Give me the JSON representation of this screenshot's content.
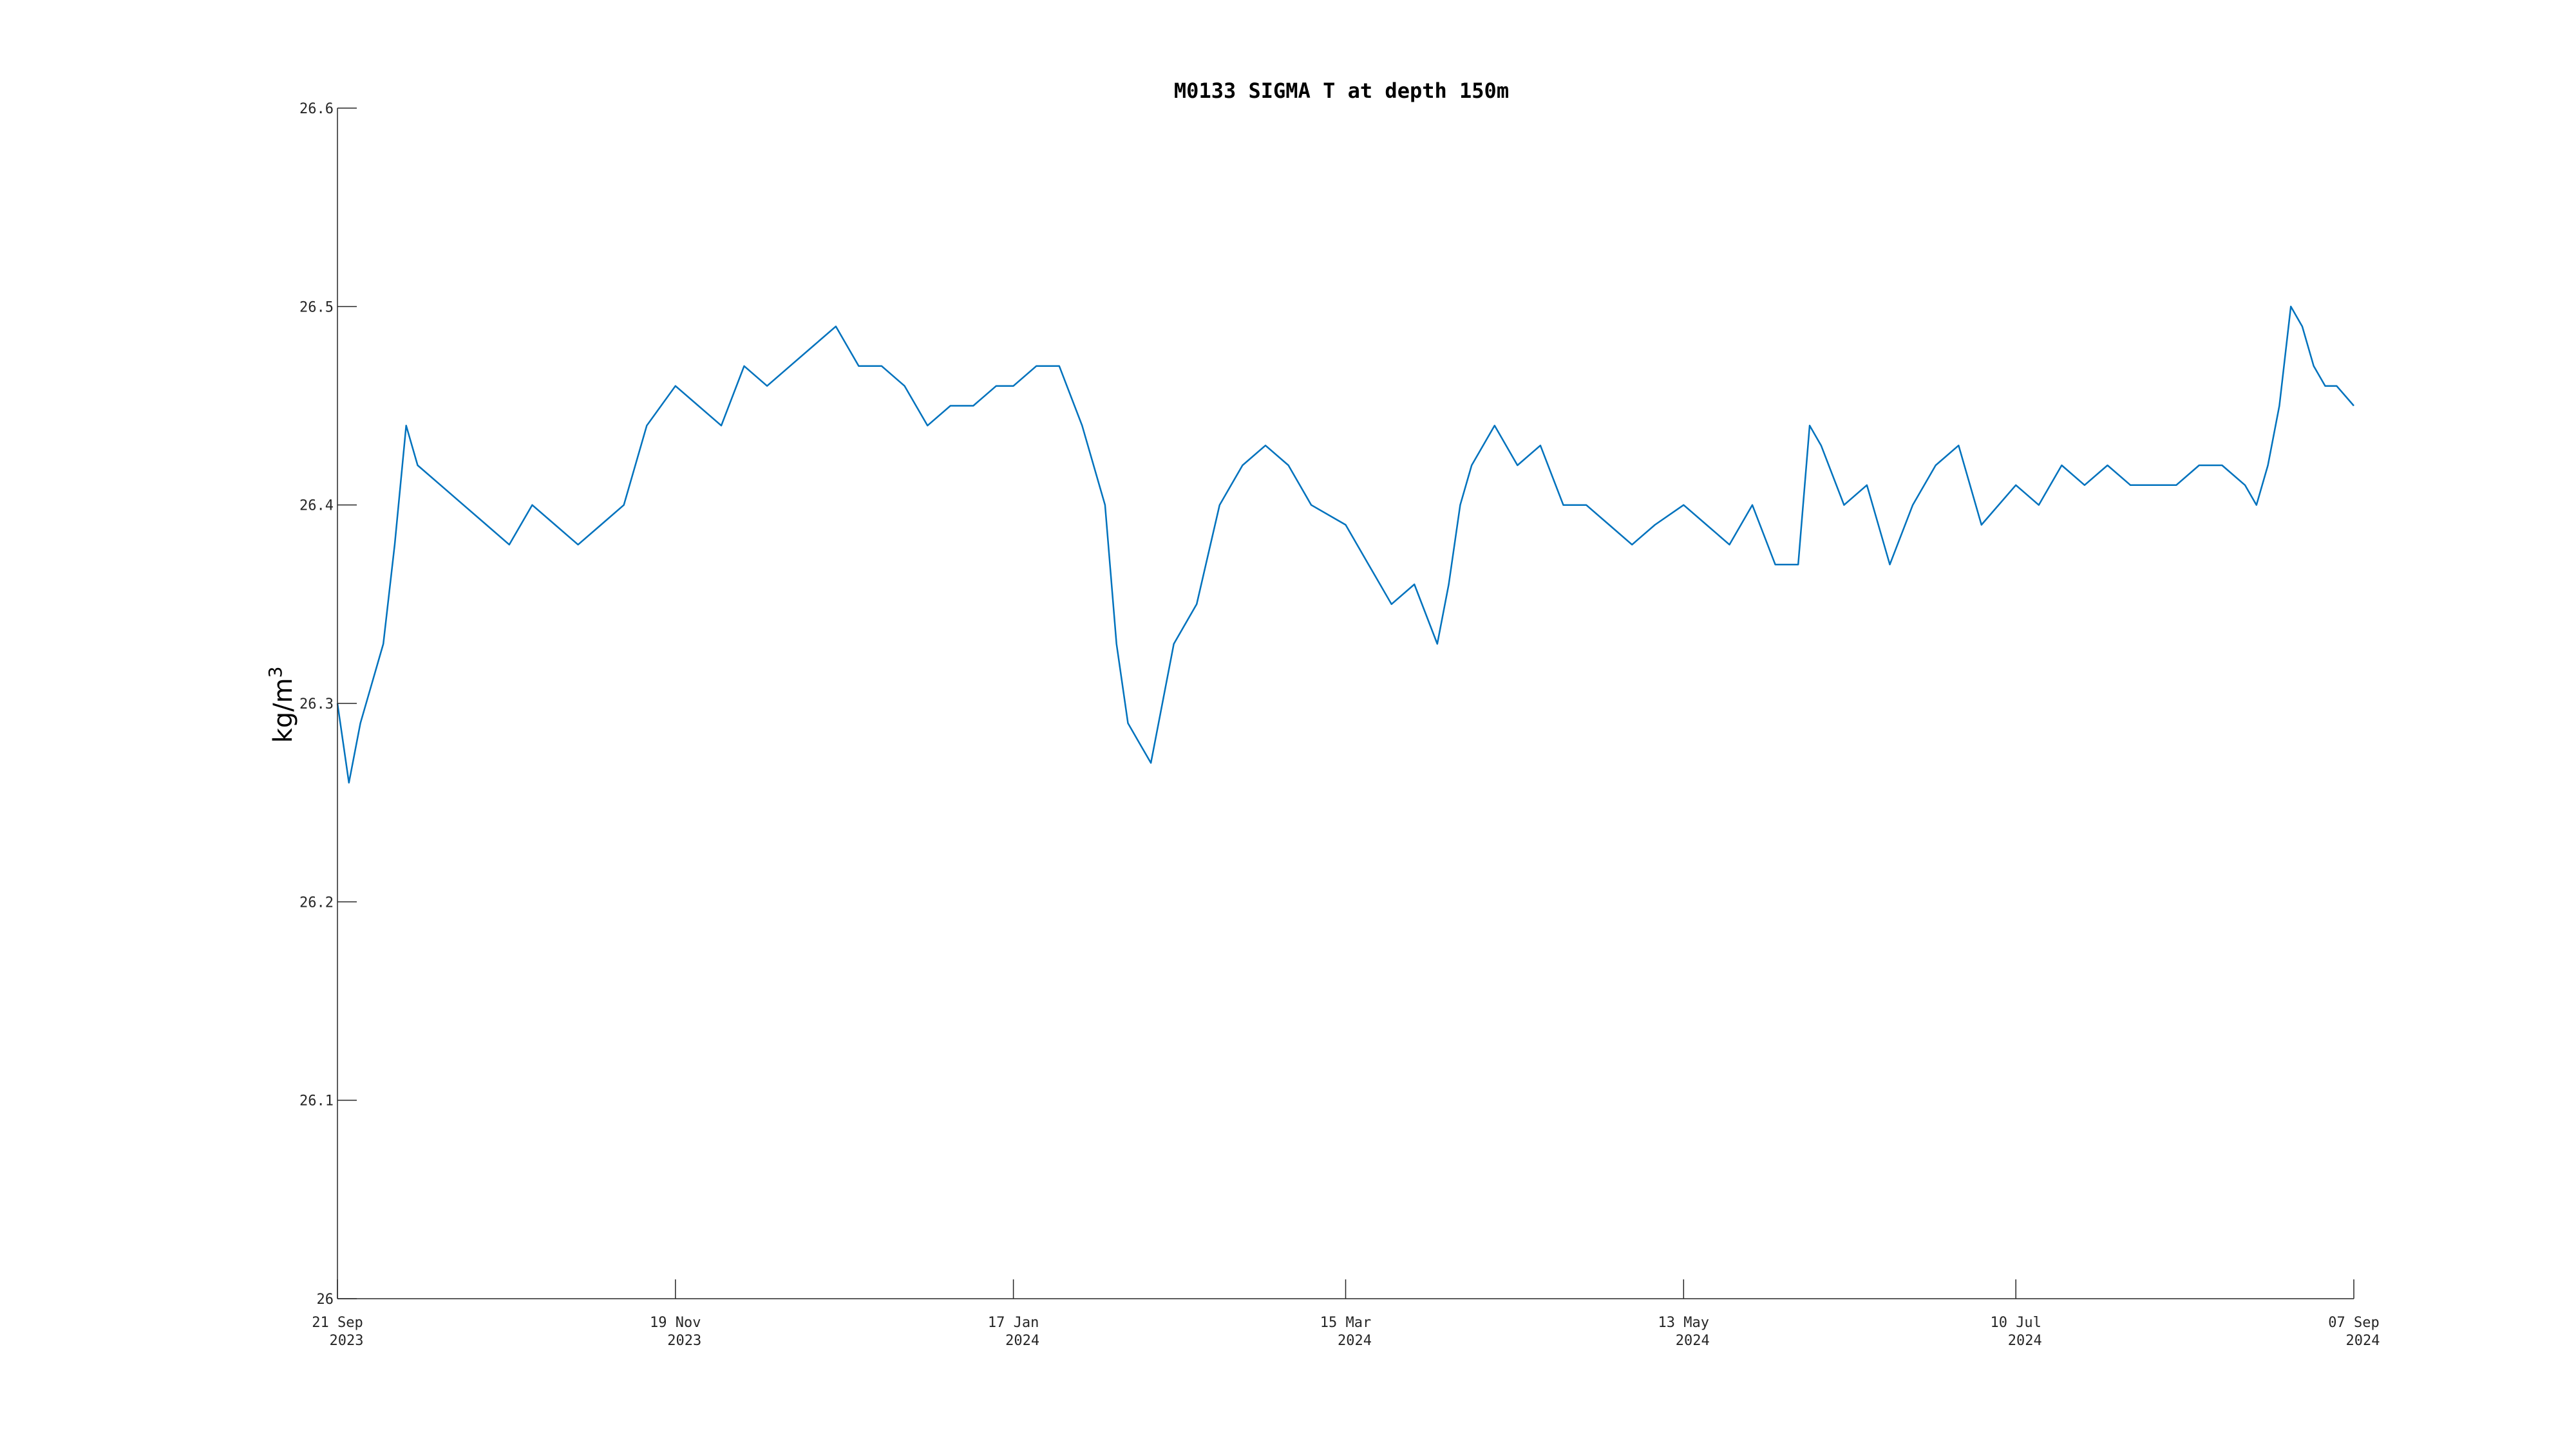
{
  "chart_data": {
    "type": "line",
    "title": "M0133 SIGMA T at depth 150m",
    "xlabel": "",
    "ylabel": "kg/m",
    "ylabel_superscript": "3",
    "xlim": [
      "2023-09-21",
      "2024-09-07"
    ],
    "ylim": [
      26.0,
      26.6
    ],
    "grid": false,
    "legend": "none",
    "line_color": "#0072BD",
    "y_ticks": [
      {
        "value": 26.0,
        "label": "26"
      },
      {
        "value": 26.1,
        "label": "26.1"
      },
      {
        "value": 26.2,
        "label": "26.2"
      },
      {
        "value": 26.3,
        "label": "26.3"
      },
      {
        "value": 26.4,
        "label": "26.4"
      },
      {
        "value": 26.5,
        "label": "26.5"
      },
      {
        "value": 26.6,
        "label": "26.6"
      }
    ],
    "x_ticks": [
      {
        "date": "2023-09-21",
        "label1": "21 Sep",
        "label2": "2023"
      },
      {
        "date": "2023-11-19",
        "label1": "19 Nov",
        "label2": "2023"
      },
      {
        "date": "2024-01-17",
        "label1": "17 Jan",
        "label2": "2024"
      },
      {
        "date": "2024-03-15",
        "label1": "15 Mar",
        "label2": "2024"
      },
      {
        "date": "2024-05-13",
        "label1": "13 May",
        "label2": "2024"
      },
      {
        "date": "2024-07-10",
        "label1": "10 Jul",
        "label2": "2024"
      },
      {
        "date": "2024-09-07",
        "label1": "07 Sep",
        "label2": "2024"
      }
    ],
    "series": [
      {
        "x": [
          "2023-09-21",
          "2023-09-23",
          "2023-09-25",
          "2023-09-27",
          "2023-09-29",
          "2023-10-01",
          "2023-10-03",
          "2023-10-05",
          "2023-10-09",
          "2023-10-13",
          "2023-10-17",
          "2023-10-21",
          "2023-10-25",
          "2023-10-29",
          "2023-11-02",
          "2023-11-06",
          "2023-11-10",
          "2023-11-14",
          "2023-11-19",
          "2023-11-23",
          "2023-11-27",
          "2023-12-01",
          "2023-12-05",
          "2023-12-09",
          "2023-12-13",
          "2023-12-17",
          "2023-12-21",
          "2023-12-25",
          "2023-12-29",
          "2024-01-02",
          "2024-01-06",
          "2024-01-10",
          "2024-01-14",
          "2024-01-17",
          "2024-01-21",
          "2024-01-25",
          "2024-01-29",
          "2024-02-02",
          "2024-02-04",
          "2024-02-06",
          "2024-02-08",
          "2024-02-10",
          "2024-02-12",
          "2024-02-14",
          "2024-02-18",
          "2024-02-22",
          "2024-02-26",
          "2024-03-01",
          "2024-03-05",
          "2024-03-09",
          "2024-03-15",
          "2024-03-19",
          "2024-03-23",
          "2024-03-27",
          "2024-03-31",
          "2024-04-02",
          "2024-04-04",
          "2024-04-06",
          "2024-04-10",
          "2024-04-14",
          "2024-04-18",
          "2024-04-22",
          "2024-04-26",
          "2024-04-30",
          "2024-05-04",
          "2024-05-08",
          "2024-05-13",
          "2024-05-17",
          "2024-05-21",
          "2024-05-25",
          "2024-05-29",
          "2024-06-02",
          "2024-06-04",
          "2024-06-06",
          "2024-06-10",
          "2024-06-14",
          "2024-06-18",
          "2024-06-22",
          "2024-06-26",
          "2024-06-30",
          "2024-07-04",
          "2024-07-10",
          "2024-07-14",
          "2024-07-18",
          "2024-07-22",
          "2024-07-26",
          "2024-07-30",
          "2024-08-03",
          "2024-08-07",
          "2024-08-11",
          "2024-08-15",
          "2024-08-19",
          "2024-08-21",
          "2024-08-23",
          "2024-08-25",
          "2024-08-27",
          "2024-08-29",
          "2024-08-31",
          "2024-09-02",
          "2024-09-04",
          "2024-09-07"
        ],
        "y": [
          26.3,
          26.26,
          26.29,
          26.31,
          26.33,
          26.38,
          26.44,
          26.42,
          26.41,
          26.4,
          26.39,
          26.38,
          26.4,
          26.39,
          26.38,
          26.39,
          26.4,
          26.44,
          26.46,
          26.45,
          26.44,
          26.47,
          26.46,
          26.47,
          26.48,
          26.49,
          26.47,
          26.47,
          26.46,
          26.44,
          26.45,
          26.45,
          26.46,
          26.46,
          26.47,
          26.47,
          26.44,
          26.4,
          26.33,
          26.29,
          26.28,
          26.27,
          26.3,
          26.33,
          26.35,
          26.4,
          26.42,
          26.43,
          26.42,
          26.4,
          26.39,
          26.37,
          26.35,
          26.36,
          26.33,
          26.36,
          26.4,
          26.42,
          26.44,
          26.42,
          26.43,
          26.4,
          26.4,
          26.39,
          26.38,
          26.39,
          26.4,
          26.39,
          26.38,
          26.4,
          26.37,
          26.37,
          26.44,
          26.43,
          26.4,
          26.41,
          26.37,
          26.4,
          26.42,
          26.43,
          26.39,
          26.41,
          26.4,
          26.42,
          26.41,
          26.42,
          26.41,
          26.41,
          26.41,
          26.42,
          26.42,
          26.41,
          26.4,
          26.42,
          26.45,
          26.5,
          26.49,
          26.47,
          26.46,
          26.46,
          26.45
        ]
      }
    ]
  }
}
